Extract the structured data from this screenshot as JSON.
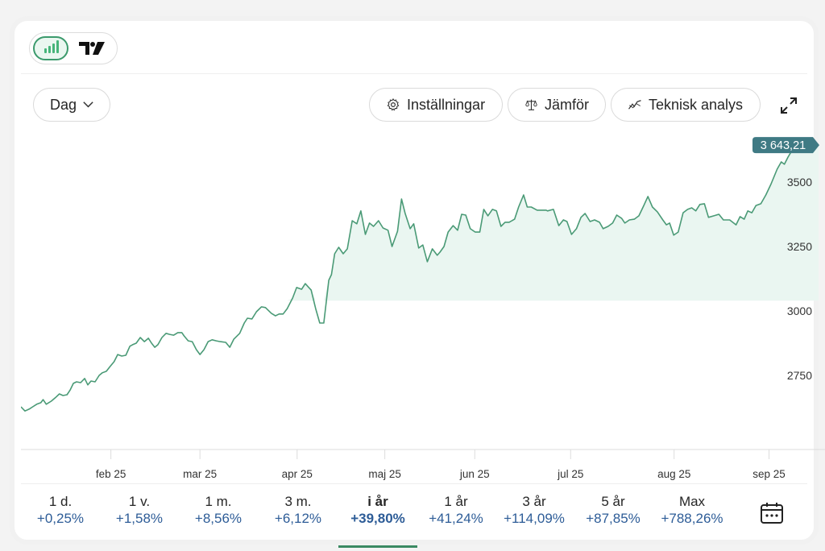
{
  "toolbar": {
    "chart_type_buttons": [
      {
        "name": "bar-chart-icon",
        "active": true
      },
      {
        "name": "tradingview-logo-icon",
        "active": false
      }
    ],
    "interval": "Dag",
    "settings_label": "Inställningar",
    "compare_label": "Jämför",
    "technical_label": "Teknisk analys",
    "expand_icon": "expand-icon"
  },
  "colors": {
    "line": "#4a9a76",
    "fill": "#eaf6f1",
    "price_tag": "#3f7a84",
    "active_tab": "#3b8a63",
    "percent": "#2d5c97"
  },
  "chart_data": {
    "type": "line",
    "title": "",
    "xlabel": "",
    "ylabel": "",
    "x_unit": "trading day index (year to date)",
    "xlim": [
      0,
      174
    ],
    "ylim": [
      2575,
      3700
    ],
    "yticks": [
      2750,
      3000,
      3250,
      3500
    ],
    "ytick_labels": [
      "2750",
      "3000",
      "3250",
      "3500"
    ],
    "xticks": [
      {
        "day": 19.9,
        "label": "feb 25"
      },
      {
        "day": 39.6,
        "label": "mar 25"
      },
      {
        "day": 61.1,
        "label": "apr 25"
      },
      {
        "day": 80.5,
        "label": "maj 25"
      },
      {
        "day": 100.4,
        "label": "jun 25"
      },
      {
        "day": 121.6,
        "label": "jul 25"
      },
      {
        "day": 144.5,
        "label": "aug 25"
      },
      {
        "day": 165.5,
        "label": "sep 25"
      }
    ],
    "last_price_label": "3 643,21",
    "last_price": 3643.21,
    "fill_baseline": 3040,
    "grid": false,
    "series": [
      {
        "name": "Index",
        "points": [
          [
            0.0,
            2628
          ],
          [
            0.9,
            2612
          ],
          [
            1.8,
            2619
          ],
          [
            2.6,
            2628
          ],
          [
            3.5,
            2638
          ],
          [
            4.4,
            2644
          ],
          [
            4.9,
            2656
          ],
          [
            5.6,
            2638
          ],
          [
            6.7,
            2650
          ],
          [
            7.6,
            2663
          ],
          [
            8.5,
            2678
          ],
          [
            9.3,
            2672
          ],
          [
            10.2,
            2675
          ],
          [
            10.9,
            2694
          ],
          [
            11.6,
            2719
          ],
          [
            12.3,
            2725
          ],
          [
            13.2,
            2722
          ],
          [
            14.1,
            2738
          ],
          [
            14.8,
            2713
          ],
          [
            15.5,
            2728
          ],
          [
            16.4,
            2725
          ],
          [
            17.3,
            2750
          ],
          [
            18.0,
            2760
          ],
          [
            18.9,
            2766
          ],
          [
            19.7,
            2784
          ],
          [
            20.6,
            2803
          ],
          [
            21.4,
            2831
          ],
          [
            22.3,
            2825
          ],
          [
            23.2,
            2828
          ],
          [
            24.1,
            2863
          ],
          [
            24.7,
            2869
          ],
          [
            25.5,
            2875
          ],
          [
            26.4,
            2897
          ],
          [
            27.3,
            2881
          ],
          [
            28.2,
            2894
          ],
          [
            28.9,
            2875
          ],
          [
            29.6,
            2859
          ],
          [
            30.3,
            2869
          ],
          [
            31.2,
            2897
          ],
          [
            32.1,
            2913
          ],
          [
            32.9,
            2909
          ],
          [
            33.8,
            2906
          ],
          [
            34.7,
            2916
          ],
          [
            35.6,
            2916
          ],
          [
            36.1,
            2903
          ],
          [
            37.0,
            2884
          ],
          [
            37.9,
            2881
          ],
          [
            38.8,
            2850
          ],
          [
            39.6,
            2831
          ],
          [
            40.5,
            2850
          ],
          [
            41.4,
            2881
          ],
          [
            42.3,
            2888
          ],
          [
            43.2,
            2884
          ],
          [
            44.1,
            2881
          ],
          [
            45.3,
            2878
          ],
          [
            46.2,
            2859
          ],
          [
            47.1,
            2891
          ],
          [
            48.4,
            2913
          ],
          [
            49.4,
            2953
          ],
          [
            50.1,
            2972
          ],
          [
            51.1,
            2969
          ],
          [
            52.1,
            2997
          ],
          [
            53.2,
            3016
          ],
          [
            54.1,
            3013
          ],
          [
            55.4,
            2991
          ],
          [
            56.3,
            2981
          ],
          [
            57.1,
            2988
          ],
          [
            58.0,
            2988
          ],
          [
            58.9,
            3009
          ],
          [
            60.1,
            3050
          ],
          [
            61.0,
            3091
          ],
          [
            62.1,
            3084
          ],
          [
            62.9,
            3106
          ],
          [
            64.2,
            3081
          ],
          [
            65.2,
            3009
          ],
          [
            66.1,
            2953
          ],
          [
            67.0,
            2953
          ],
          [
            68.1,
            3119
          ],
          [
            68.7,
            3141
          ],
          [
            69.4,
            3222
          ],
          [
            70.3,
            3247
          ],
          [
            71.3,
            3222
          ],
          [
            72.2,
            3241
          ],
          [
            73.3,
            3350
          ],
          [
            74.3,
            3338
          ],
          [
            75.2,
            3388
          ],
          [
            76.2,
            3297
          ],
          [
            77.1,
            3341
          ],
          [
            78.0,
            3328
          ],
          [
            79.1,
            3350
          ],
          [
            80.1,
            3322
          ],
          [
            81.2,
            3313
          ],
          [
            82.1,
            3250
          ],
          [
            83.3,
            3309
          ],
          [
            84.2,
            3434
          ],
          [
            85.0,
            3378
          ],
          [
            86.1,
            3319
          ],
          [
            86.9,
            3338
          ],
          [
            88.0,
            3244
          ],
          [
            88.9,
            3256
          ],
          [
            89.9,
            3191
          ],
          [
            91.0,
            3241
          ],
          [
            92.1,
            3216
          ],
          [
            92.7,
            3228
          ],
          [
            93.6,
            3250
          ],
          [
            94.5,
            3306
          ],
          [
            95.6,
            3331
          ],
          [
            96.6,
            3313
          ],
          [
            97.5,
            3375
          ],
          [
            98.4,
            3372
          ],
          [
            99.4,
            3319
          ],
          [
            100.5,
            3306
          ],
          [
            101.5,
            3306
          ],
          [
            102.4,
            3394
          ],
          [
            103.3,
            3369
          ],
          [
            104.3,
            3394
          ],
          [
            105.2,
            3388
          ],
          [
            106.2,
            3328
          ],
          [
            107.1,
            3344
          ],
          [
            108.0,
            3344
          ],
          [
            109.2,
            3356
          ],
          [
            110.1,
            3403
          ],
          [
            111.2,
            3450
          ],
          [
            112.0,
            3403
          ],
          [
            112.9,
            3403
          ],
          [
            114.2,
            3391
          ],
          [
            115.0,
            3391
          ],
          [
            116.2,
            3391
          ],
          [
            116.5,
            3388
          ],
          [
            117.8,
            3394
          ],
          [
            119.0,
            3331
          ],
          [
            120.0,
            3353
          ],
          [
            120.8,
            3347
          ],
          [
            121.8,
            3297
          ],
          [
            122.9,
            3319
          ],
          [
            123.9,
            3363
          ],
          [
            124.8,
            3378
          ],
          [
            125.9,
            3347
          ],
          [
            126.9,
            3353
          ],
          [
            128.0,
            3344
          ],
          [
            128.8,
            3319
          ],
          [
            129.9,
            3328
          ],
          [
            130.9,
            3341
          ],
          [
            131.8,
            3372
          ],
          [
            132.9,
            3359
          ],
          [
            133.6,
            3341
          ],
          [
            134.6,
            3353
          ],
          [
            135.7,
            3356
          ],
          [
            136.7,
            3369
          ],
          [
            137.8,
            3409
          ],
          [
            138.7,
            3444
          ],
          [
            139.7,
            3403
          ],
          [
            140.8,
            3384
          ],
          [
            142.0,
            3353
          ],
          [
            142.8,
            3334
          ],
          [
            143.5,
            3341
          ],
          [
            144.4,
            3294
          ],
          [
            145.4,
            3306
          ],
          [
            146.5,
            3381
          ],
          [
            147.5,
            3394
          ],
          [
            148.4,
            3400
          ],
          [
            149.3,
            3388
          ],
          [
            150.2,
            3413
          ],
          [
            151.2,
            3416
          ],
          [
            152.1,
            3363
          ],
          [
            153.3,
            3369
          ],
          [
            154.4,
            3375
          ],
          [
            155.4,
            3353
          ],
          [
            156.8,
            3353
          ],
          [
            158.2,
            3334
          ],
          [
            159.1,
            3366
          ],
          [
            160.0,
            3356
          ],
          [
            160.8,
            3388
          ],
          [
            161.7,
            3381
          ],
          [
            162.6,
            3409
          ],
          [
            163.7,
            3416
          ],
          [
            164.8,
            3450
          ],
          [
            165.9,
            3491
          ],
          [
            167.3,
            3550
          ],
          [
            168.2,
            3578
          ],
          [
            168.9,
            3569
          ],
          [
            169.7,
            3597
          ],
          [
            171.1,
            3638
          ],
          [
            172.0,
            3643.21
          ]
        ]
      }
    ]
  },
  "periods": [
    {
      "label": "1 d.",
      "value": "+0,25%",
      "active": false
    },
    {
      "label": "1 v.",
      "value": "+1,58%",
      "active": false
    },
    {
      "label": "1 m.",
      "value": "+8,56%",
      "active": false
    },
    {
      "label": "3 m.",
      "value": "+6,12%",
      "active": false
    },
    {
      "label": "i år",
      "value": "+39,80%",
      "active": true
    },
    {
      "label": "1 år",
      "value": "+41,24%",
      "active": false
    },
    {
      "label": "3 år",
      "value": "+114,09%",
      "active": false
    },
    {
      "label": "5 år",
      "value": "+87,85%",
      "active": false
    },
    {
      "label": "Max",
      "value": "+788,26%",
      "active": false
    }
  ],
  "calendar_icon": "calendar-icon"
}
